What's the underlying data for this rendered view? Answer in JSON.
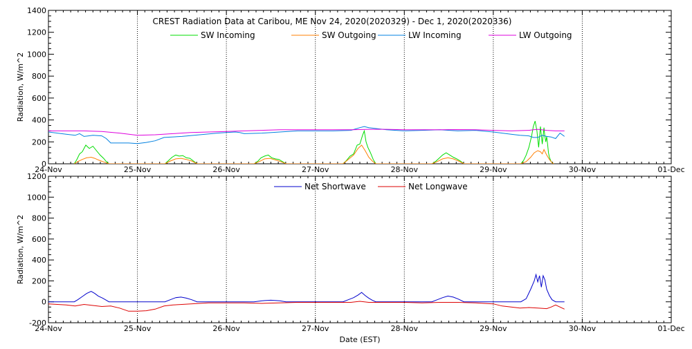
{
  "chart_data": [
    {
      "type": "line",
      "title": "CREST Radiation Data at Caribou, ME   Nov 24, 2020(2020329) - Dec  1, 2020(2020336)",
      "ylabel": "Radiation, W/m^2",
      "xlabel": "",
      "xlim": [
        0,
        7
      ],
      "ylim": [
        0,
        1400
      ],
      "yticks": [
        0,
        200,
        400,
        600,
        800,
        1000,
        1200,
        1400
      ],
      "xtick_labels": [
        "24-Nov",
        "25-Nov",
        "26-Nov",
        "27-Nov",
        "28-Nov",
        "29-Nov",
        "30-Nov",
        "01-Dec"
      ],
      "grid": true,
      "legend": "top-center",
      "x_unit": "days since 24-Nov 00:00 EST",
      "series": [
        {
          "name": "SW Incoming",
          "color": "#00dd00",
          "x": [
            0.29,
            0.32,
            0.35,
            0.38,
            0.42,
            0.46,
            0.5,
            0.54,
            0.58,
            0.62,
            0.65,
            0.68,
            1.31,
            1.35,
            1.39,
            1.43,
            1.47,
            1.51,
            1.55,
            1.59,
            1.63,
            1.67,
            2.31,
            2.35,
            2.39,
            2.43,
            2.47,
            2.51,
            2.55,
            2.59,
            2.63,
            2.67,
            3.31,
            3.35,
            3.39,
            3.43,
            3.47,
            3.5,
            3.53,
            3.55,
            3.57,
            3.59,
            3.62,
            3.65,
            3.68,
            4.31,
            4.35,
            4.39,
            4.43,
            4.47,
            4.51,
            4.55,
            4.59,
            4.63,
            4.67,
            5.31,
            5.34,
            5.37,
            5.4,
            5.43,
            5.45,
            5.47,
            5.49,
            5.51,
            5.53,
            5.55,
            5.57,
            5.58,
            5.59,
            5.6,
            5.61,
            5.62,
            5.63,
            5.65,
            5.67,
            5.68
          ],
          "values": [
            0,
            40,
            90,
            110,
            170,
            140,
            160,
            120,
            80,
            50,
            20,
            0,
            0,
            30,
            60,
            80,
            70,
            75,
            55,
            50,
            25,
            0,
            0,
            20,
            55,
            70,
            80,
            55,
            45,
            40,
            20,
            0,
            0,
            30,
            70,
            90,
            170,
            180,
            260,
            300,
            200,
            150,
            100,
            40,
            0,
            0,
            20,
            50,
            80,
            100,
            80,
            60,
            45,
            25,
            0,
            0,
            30,
            80,
            150,
            250,
            340,
            390,
            300,
            150,
            340,
            180,
            330,
            250,
            200,
            250,
            180,
            100,
            60,
            20,
            5,
            0
          ]
        },
        {
          "name": "SW Outgoing",
          "color": "#ff7f00",
          "x": [
            0.29,
            0.33,
            0.38,
            0.43,
            0.48,
            0.52,
            0.56,
            0.61,
            0.65,
            0.68,
            1.31,
            1.37,
            1.43,
            1.49,
            1.55,
            1.61,
            1.67,
            2.31,
            2.37,
            2.43,
            2.49,
            2.55,
            2.61,
            2.67,
            3.31,
            3.37,
            3.43,
            3.48,
            3.52,
            3.56,
            3.6,
            3.64,
            3.68,
            4.31,
            4.37,
            4.43,
            4.49,
            4.55,
            4.61,
            4.67,
            5.31,
            5.37,
            5.42,
            5.46,
            5.5,
            5.53,
            5.55,
            5.57,
            5.6,
            5.63,
            5.66,
            5.68
          ],
          "values": [
            0,
            20,
            40,
            55,
            60,
            50,
            35,
            20,
            8,
            0,
            0,
            25,
            45,
            50,
            40,
            25,
            0,
            0,
            20,
            45,
            50,
            35,
            20,
            0,
            0,
            40,
            80,
            140,
            170,
            120,
            60,
            25,
            0,
            0,
            20,
            45,
            55,
            45,
            25,
            0,
            0,
            20,
            60,
            100,
            120,
            110,
            90,
            130,
            80,
            40,
            10,
            0
          ]
        },
        {
          "name": "LW Incoming",
          "color": "#0080e0",
          "x": [
            0,
            0.1,
            0.2,
            0.3,
            0.35,
            0.4,
            0.5,
            0.6,
            0.65,
            0.7,
            0.8,
            0.9,
            1.0,
            1.1,
            1.2,
            1.3,
            1.5,
            1.7,
            1.9,
            2.0,
            2.1,
            2.15,
            2.2,
            2.4,
            2.6,
            2.8,
            3.0,
            3.2,
            3.4,
            3.5,
            3.55,
            3.6,
            3.8,
            4.0,
            4.2,
            4.4,
            4.6,
            4.8,
            5.0,
            5.1,
            5.2,
            5.3,
            5.4,
            5.45,
            5.5,
            5.55,
            5.6,
            5.65,
            5.7,
            5.75,
            5.8
          ],
          "values": [
            290,
            280,
            270,
            260,
            275,
            250,
            260,
            255,
            230,
            190,
            190,
            190,
            185,
            195,
            210,
            240,
            250,
            265,
            280,
            285,
            290,
            285,
            275,
            280,
            290,
            300,
            300,
            300,
            305,
            330,
            340,
            330,
            310,
            300,
            305,
            310,
            300,
            305,
            290,
            280,
            270,
            260,
            255,
            240,
            240,
            260,
            250,
            245,
            230,
            280,
            250
          ]
        },
        {
          "name": "LW Outgoing",
          "color": "#dd00dd",
          "x": [
            0,
            0.2,
            0.4,
            0.6,
            0.8,
            1.0,
            1.2,
            1.4,
            1.6,
            1.8,
            2.0,
            2.2,
            2.4,
            2.6,
            2.8,
            3.0,
            3.2,
            3.4,
            3.6,
            3.8,
            4.0,
            4.2,
            4.4,
            4.6,
            4.8,
            5.0,
            5.2,
            5.4,
            5.45,
            5.5,
            5.6,
            5.7,
            5.8
          ],
          "values": [
            300,
            300,
            300,
            295,
            280,
            260,
            265,
            275,
            285,
            290,
            295,
            300,
            305,
            310,
            310,
            310,
            310,
            310,
            315,
            315,
            310,
            310,
            310,
            312,
            310,
            305,
            300,
            305,
            310,
            315,
            305,
            300,
            300
          ]
        }
      ]
    },
    {
      "type": "line",
      "title": "",
      "ylabel": "Radiation, W/m^2",
      "xlabel": "Date (EST)",
      "xlim": [
        0,
        7
      ],
      "ylim": [
        -200,
        1200
      ],
      "yticks": [
        -200,
        0,
        200,
        400,
        600,
        800,
        1000,
        1200
      ],
      "xtick_labels": [
        "24-Nov",
        "25-Nov",
        "26-Nov",
        "27-Nov",
        "28-Nov",
        "29-Nov",
        "30-Nov",
        "01-Dec"
      ],
      "grid": true,
      "legend": "top-center",
      "x_unit": "days since 24-Nov 00:00 EST",
      "series": [
        {
          "name": "Net Shortwave",
          "color": "#0000cc",
          "x": [
            0,
            0.29,
            0.33,
            0.38,
            0.43,
            0.48,
            0.52,
            0.56,
            0.61,
            0.65,
            0.68,
            1.31,
            1.37,
            1.43,
            1.49,
            1.55,
            1.61,
            1.67,
            2.31,
            2.4,
            2.5,
            2.6,
            2.67,
            3.31,
            3.37,
            3.43,
            3.48,
            3.52,
            3.56,
            3.6,
            3.64,
            3.68,
            4.31,
            4.37,
            4.43,
            4.49,
            4.55,
            4.61,
            4.67,
            5.31,
            5.37,
            5.42,
            5.46,
            5.48,
            5.5,
            5.52,
            5.54,
            5.56,
            5.58,
            5.6,
            5.63,
            5.66,
            5.7,
            5.8
          ],
          "values": [
            0,
            0,
            20,
            50,
            80,
            100,
            80,
            55,
            35,
            15,
            0,
            0,
            20,
            40,
            45,
            35,
            20,
            0,
            0,
            10,
            15,
            10,
            0,
            0,
            20,
            40,
            65,
            90,
            60,
            35,
            15,
            0,
            0,
            20,
            40,
            55,
            45,
            25,
            0,
            0,
            30,
            120,
            200,
            260,
            190,
            250,
            140,
            250,
            210,
            120,
            60,
            20,
            0,
            0
          ]
        },
        {
          "name": "Net Longwave",
          "color": "#dd0000",
          "x": [
            0,
            0.1,
            0.2,
            0.3,
            0.4,
            0.5,
            0.6,
            0.7,
            0.8,
            0.9,
            1.0,
            1.1,
            1.2,
            1.3,
            1.4,
            1.5,
            1.6,
            1.8,
            2.0,
            2.2,
            2.4,
            2.6,
            2.8,
            3.0,
            3.2,
            3.4,
            3.5,
            3.6,
            3.8,
            4.0,
            4.2,
            4.4,
            4.6,
            4.8,
            5.0,
            5.1,
            5.2,
            5.3,
            5.4,
            5.5,
            5.6,
            5.65,
            5.7,
            5.75,
            5.8
          ],
          "values": [
            -20,
            -25,
            -30,
            -40,
            -25,
            -35,
            -45,
            -40,
            -60,
            -90,
            -90,
            -85,
            -70,
            -40,
            -30,
            -25,
            -20,
            -10,
            -10,
            -10,
            -15,
            -10,
            -5,
            -5,
            -5,
            -5,
            5,
            -5,
            -5,
            -5,
            -10,
            -5,
            -5,
            -10,
            -20,
            -40,
            -50,
            -60,
            -55,
            -60,
            -65,
            -50,
            -30,
            -50,
            -70
          ]
        }
      ]
    }
  ]
}
